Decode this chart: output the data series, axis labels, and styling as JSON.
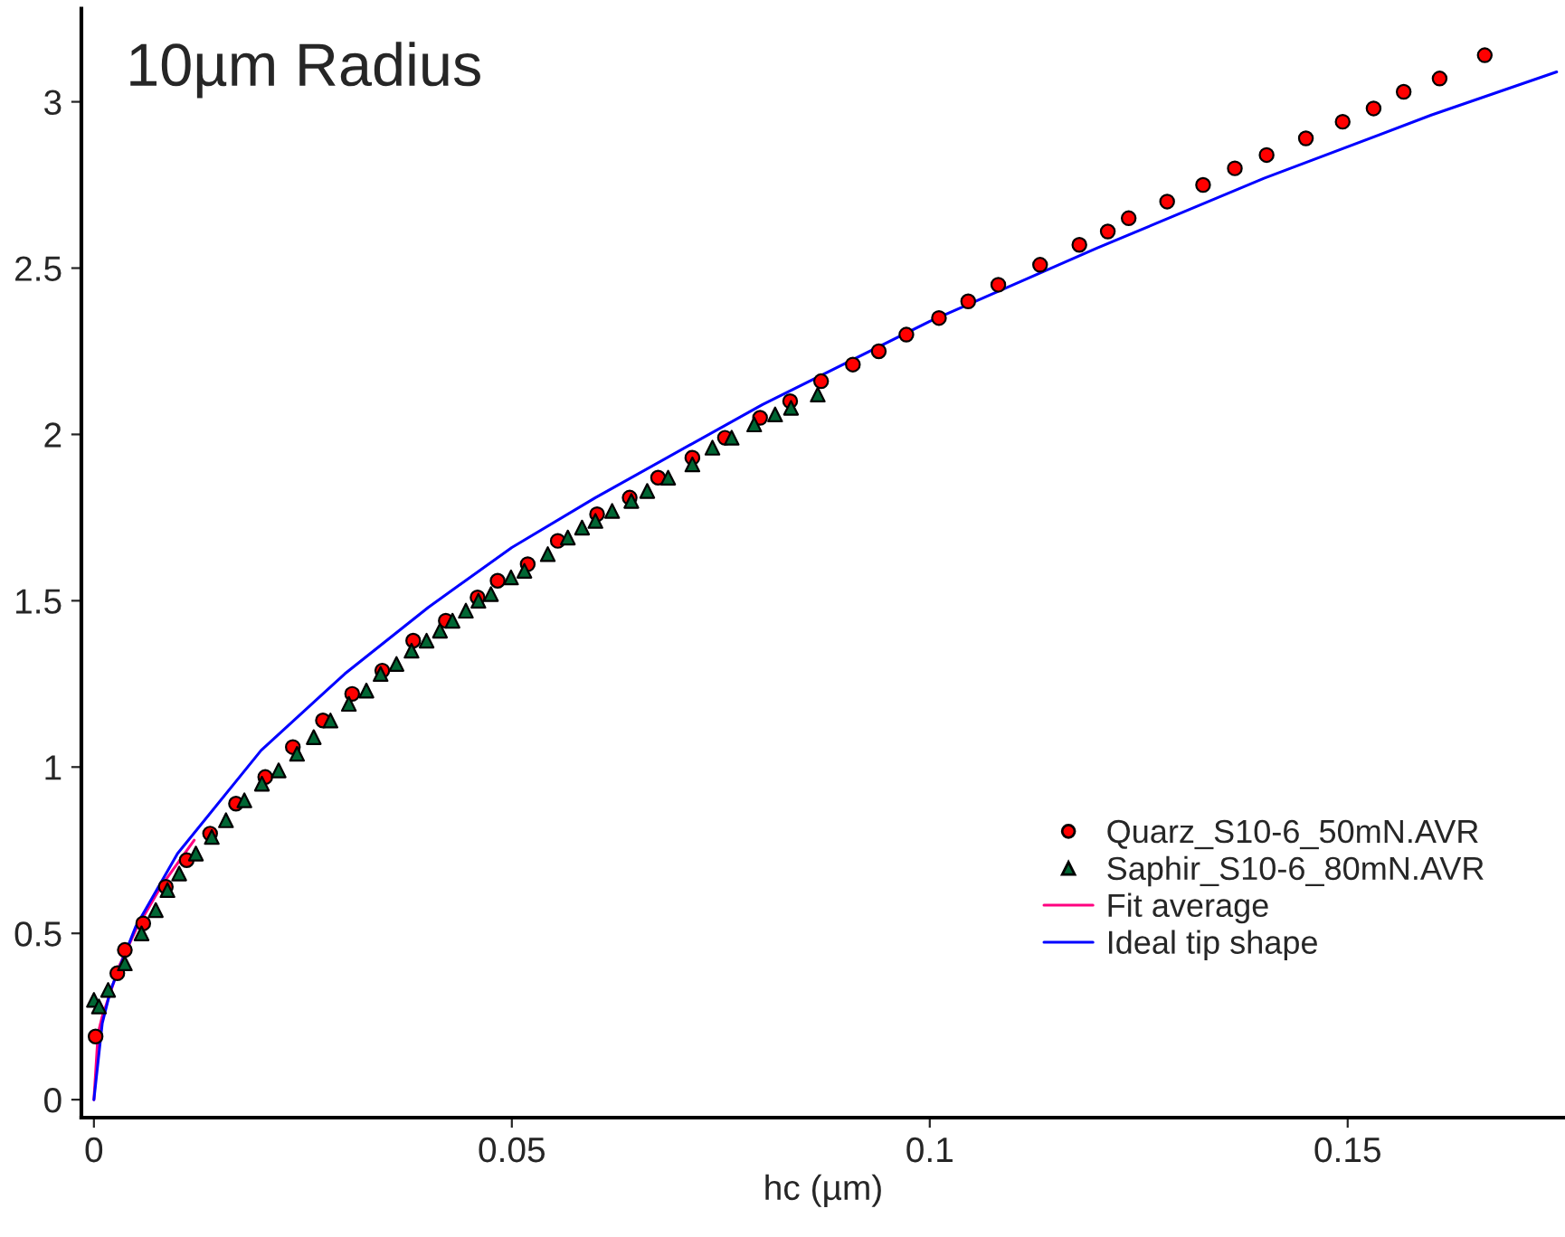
{
  "chart_data": {
    "type": "scatter",
    "title": "10µm Radius",
    "xlabel": "hc (µm)",
    "xlim": [
      -0.0015,
      0.176
    ],
    "ylim": [
      -0.054,
      3.28
    ],
    "xticks": [
      0,
      0.05,
      0.1,
      0.15
    ],
    "yticks": [
      0,
      0.5,
      1,
      1.5,
      2,
      2.5,
      3
    ],
    "grid": false,
    "legend": "bottom right",
    "series": [
      {
        "name": "Quarz_S10-6_50mN.AVR",
        "marker": "circle",
        "color": "#ff0000",
        "x": [
          0.0002,
          0.0028,
          0.0037,
          0.0059,
          0.0086,
          0.0111,
          0.0139,
          0.017,
          0.0205,
          0.0238,
          0.0274,
          0.0309,
          0.0345,
          0.0382,
          0.0421,
          0.0459,
          0.0483,
          0.0519,
          0.0555,
          0.0602,
          0.0641,
          0.0675,
          0.0716,
          0.0755,
          0.0797,
          0.0833,
          0.087,
          0.0908,
          0.0939,
          0.0972,
          0.1011,
          0.1046,
          0.1082,
          0.1132,
          0.1179,
          0.1213,
          0.1238,
          0.1284,
          0.1327,
          0.1365,
          0.1403,
          0.145,
          0.1494,
          0.1531,
          0.1567,
          0.161,
          0.1664
        ],
        "values": [
          0.19,
          0.38,
          0.45,
          0.53,
          0.64,
          0.72,
          0.8,
          0.89,
          0.97,
          1.06,
          1.14,
          1.22,
          1.29,
          1.38,
          1.44,
          1.51,
          1.56,
          1.61,
          1.68,
          1.76,
          1.81,
          1.87,
          1.93,
          1.99,
          2.05,
          2.1,
          2.16,
          2.21,
          2.25,
          2.3,
          2.35,
          2.4,
          2.45,
          2.51,
          2.57,
          2.61,
          2.65,
          2.7,
          2.75,
          2.8,
          2.84,
          2.89,
          2.94,
          2.98,
          3.03,
          3.07,
          3.14
        ]
      },
      {
        "name": "Saphir_S10-6_80mN.AVR",
        "marker": "triangle",
        "color": "#006633",
        "x": [
          0,
          0.0006,
          0.0017,
          0.0037,
          0.0057,
          0.0074,
          0.0088,
          0.0102,
          0.0122,
          0.0141,
          0.0158,
          0.018,
          0.0201,
          0.0221,
          0.0243,
          0.0263,
          0.0283,
          0.0305,
          0.0326,
          0.0343,
          0.0362,
          0.038,
          0.0398,
          0.0414,
          0.0429,
          0.0445,
          0.046,
          0.0475,
          0.0499,
          0.0515,
          0.0543,
          0.0567,
          0.0584,
          0.06,
          0.062,
          0.0643,
          0.0662,
          0.0687,
          0.0716,
          0.074,
          0.0763,
          0.079,
          0.0815,
          0.0834,
          0.0866
        ],
        "values": [
          0.3,
          0.28,
          0.33,
          0.41,
          0.5,
          0.57,
          0.63,
          0.68,
          0.74,
          0.79,
          0.84,
          0.9,
          0.95,
          0.99,
          1.04,
          1.09,
          1.14,
          1.19,
          1.23,
          1.28,
          1.31,
          1.35,
          1.38,
          1.41,
          1.44,
          1.47,
          1.5,
          1.52,
          1.57,
          1.59,
          1.64,
          1.69,
          1.72,
          1.74,
          1.77,
          1.8,
          1.83,
          1.87,
          1.91,
          1.96,
          1.99,
          2.03,
          2.06,
          2.08,
          2.12
        ]
      },
      {
        "name": "Fit average",
        "type": "line",
        "marker": "none",
        "line_style": "solid",
        "color": "#ff0080",
        "x": [
          0,
          0.0005,
          0.001,
          0.003,
          0.005,
          0.008,
          0.012
        ],
        "values": [
          0,
          0.2,
          0.25,
          0.4,
          0.51,
          0.64,
          0.78
        ]
      },
      {
        "name": "Ideal tip shape",
        "type": "line",
        "marker": "none",
        "line_style": "solid",
        "color": "#0000ff",
        "x": [
          0,
          0.001,
          0.002,
          0.005,
          0.01,
          0.02,
          0.03,
          0.04,
          0.05,
          0.06,
          0.08,
          0.1,
          0.12,
          0.14,
          0.16,
          0.175
        ],
        "values": [
          0,
          0.23,
          0.33,
          0.52,
          0.74,
          1.05,
          1.28,
          1.48,
          1.66,
          1.81,
          2.09,
          2.34,
          2.56,
          2.77,
          2.96,
          3.09
        ]
      }
    ]
  }
}
